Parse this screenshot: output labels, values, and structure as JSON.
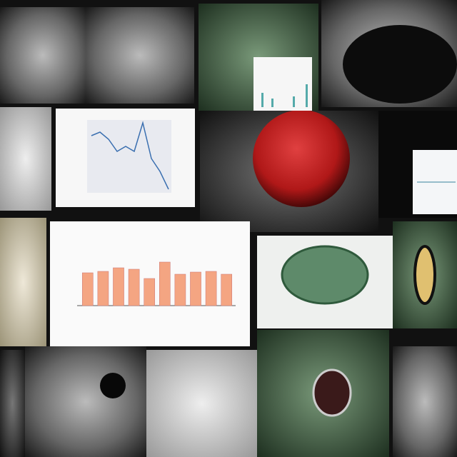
{
  "chart_data": [
    {
      "type": "line",
      "values": [
        190,
        185,
        195,
        212,
        205,
        212,
        172,
        222,
        240,
        265
      ]
    },
    {
      "type": "bar",
      "values": [
        46,
        48,
        53,
        51,
        38,
        61,
        44,
        47,
        48,
        44
      ],
      "color": "#f4a582"
    }
  ]
}
